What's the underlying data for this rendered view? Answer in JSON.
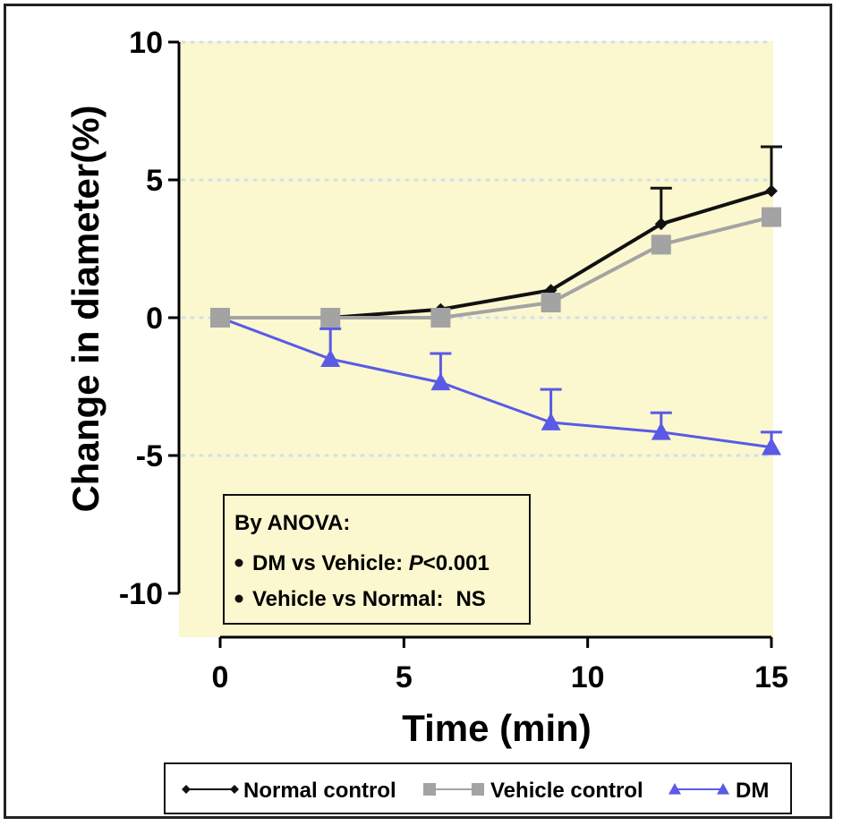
{
  "chart_data": {
    "type": "line",
    "xlabel": "Time (min)",
    "ylabel": "Change in diameter(%)",
    "xlim": [
      0,
      15
    ],
    "ylim": [
      -10,
      10
    ],
    "x_ticks": [
      "0",
      "5",
      "10",
      "15"
    ],
    "y_ticks": [
      "10",
      "5",
      "0",
      "-5",
      "-10"
    ],
    "grid": "dotted horizontal at 10, 5, 0, -5",
    "background_color": "#fbf7cf",
    "legend_position": "bottom",
    "x": [
      0,
      3,
      6,
      9,
      12,
      15
    ],
    "series": [
      {
        "name": "Normal control",
        "marker": "diamond",
        "color": "#111111",
        "values": [
          0,
          0,
          0.3,
          1.0,
          3.4,
          4.6
        ],
        "error": [
          0,
          0,
          0,
          0,
          1.3,
          1.6
        ],
        "error_direction": "up"
      },
      {
        "name": "Vehicle control",
        "marker": "square",
        "color": "#a3a3a3",
        "values": [
          0,
          0,
          0,
          0.55,
          2.65,
          3.65
        ],
        "error": [
          0,
          0,
          0,
          0,
          0,
          0
        ],
        "error_direction": "up"
      },
      {
        "name": "DM",
        "marker": "triangle",
        "color": "#5a5ae6",
        "values": [
          0,
          -1.5,
          -2.35,
          -3.8,
          -4.15,
          -4.7
        ],
        "error": [
          0,
          1.1,
          1.05,
          1.2,
          0.7,
          0.55
        ],
        "error_direction": "up"
      }
    ],
    "annotation": {
      "title": "By ANOVA:",
      "line1_text": "DM vs Vehicle: ",
      "line1_p_symbol": "P",
      "line1_value": "<0.001",
      "line2_text": "Vehicle vs Normal:",
      "line2_value": "NS"
    }
  }
}
